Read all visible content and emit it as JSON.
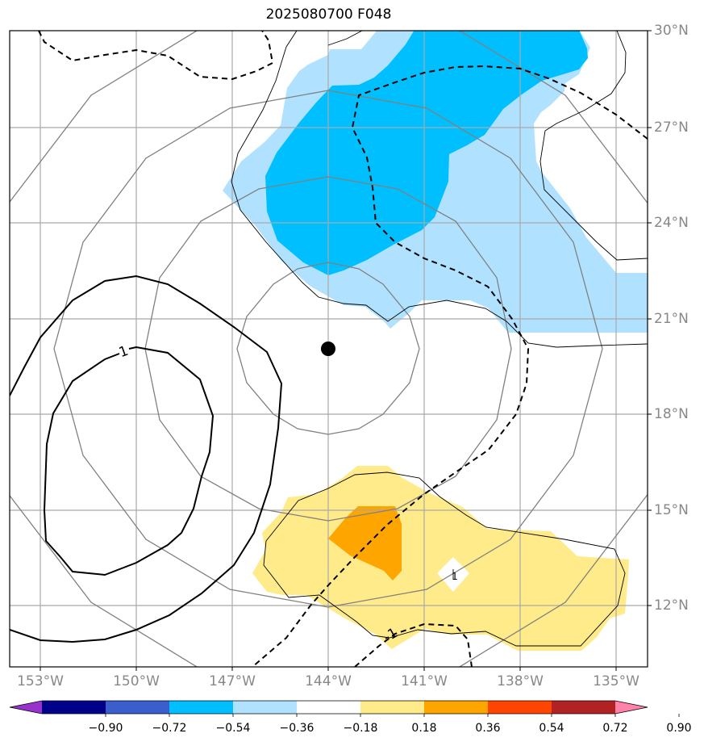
{
  "title": "2025080700 F048",
  "chart_data": {
    "type": "map",
    "title": "2025080700 F048",
    "lon_range": [
      -154,
      -133.5
    ],
    "lat_range": [
      10,
      30
    ],
    "lon_ticks": [
      "153°W",
      "150°W",
      "147°W",
      "144°W",
      "141°W",
      "138°W",
      "135°W"
    ],
    "lat_ticks": [
      "30°N",
      "27°N",
      "24°N",
      "21°N",
      "18°N",
      "15°N",
      "12°N"
    ],
    "grid": true,
    "center_marker": {
      "lon": -144,
      "lat": 20
    },
    "colorbar": {
      "levels": [
        "-0.90",
        "-0.72",
        "-0.54",
        "-0.36",
        "-0.18",
        "0.18",
        "0.36",
        "0.54",
        "0.72",
        "0.90"
      ],
      "colors": [
        "#9932cc",
        "#00008b",
        "#3a5fcd",
        "#00bfff",
        "#b0e2ff",
        "#ffffff",
        "#ffeb8a",
        "#ffa500",
        "#ff4500",
        "#b22222",
        "#ff82ab"
      ]
    },
    "contour_labels": [
      {
        "text": "1",
        "lon": -150.3,
        "lat": 19.9
      },
      {
        "text": "-1",
        "lon": -141.0,
        "lat": 11.4
      },
      {
        "text": "1",
        "lon": -140.0,
        "lat": 13.0
      }
    ],
    "shaded_regions": [
      {
        "level": "-0.36 to -0.18",
        "color": "#b0e2ff"
      },
      {
        "level": "-0.54 to -0.36",
        "color": "#00bfff"
      },
      {
        "level": "0.18 to 0.36",
        "color": "#ffeb8a"
      },
      {
        "level": "0.36 to 0.54",
        "color": "#ffa500"
      }
    ]
  }
}
